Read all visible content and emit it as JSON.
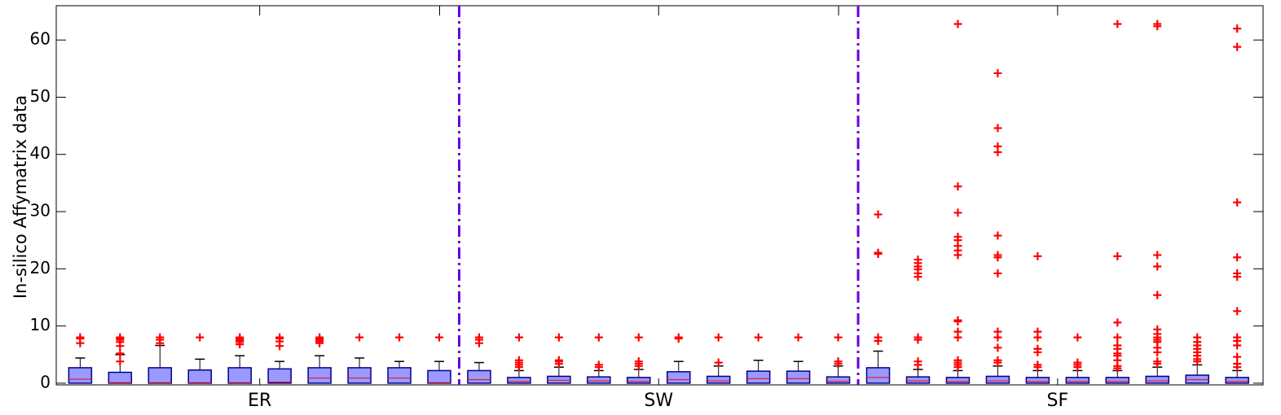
{
  "chart_data": {
    "type": "box",
    "ylabel": "In-silico  Affymatrix data",
    "ylim": [
      -0.3,
      66
    ],
    "yticks": [
      0,
      10,
      20,
      30,
      40,
      50,
      60
    ],
    "grid": false,
    "groups": [
      "ER",
      "SW",
      "SF"
    ],
    "boxes_per_group": 10,
    "colors": {
      "box_fill": "#9999ff",
      "box_edge": "#00008b",
      "median": "#ff0000",
      "outlier": "#ff0000",
      "separator": "#6600dd",
      "whisker": "#000000"
    },
    "boxes": [
      {
        "group": "ER",
        "q1": 0,
        "median": 0.7,
        "q3": 2.7,
        "whisker_low": 0,
        "whisker_high": 4.4,
        "outliers": [
          7.0,
          7.8,
          8.0
        ]
      },
      {
        "group": "ER",
        "q1": 0,
        "median": 0.1,
        "q3": 1.9,
        "whisker_low": 0,
        "whisker_high": 5.0,
        "outliers": [
          3.8,
          5.2,
          6.5,
          7.2,
          7.6,
          7.9,
          8.0
        ]
      },
      {
        "group": "ER",
        "q1": 0,
        "median": 0.1,
        "q3": 2.7,
        "whisker_low": 0,
        "whisker_high": 6.6,
        "outliers": [
          7.0,
          7.6,
          8.0
        ]
      },
      {
        "group": "ER",
        "q1": 0,
        "median": 0.1,
        "q3": 2.3,
        "whisker_low": 0,
        "whisker_high": 4.2,
        "outliers": [
          8.0
        ]
      },
      {
        "group": "ER",
        "q1": 0,
        "median": 0.1,
        "q3": 2.7,
        "whisker_low": 0,
        "whisker_high": 4.8,
        "outliers": [
          6.8,
          7.2,
          7.4,
          7.6,
          7.9,
          8.0
        ]
      },
      {
        "group": "ER",
        "q1": 0,
        "median": 0.2,
        "q3": 2.5,
        "whisker_low": 0,
        "whisker_high": 3.8,
        "outliers": [
          6.5,
          7.3,
          7.8,
          8.0
        ]
      },
      {
        "group": "ER",
        "q1": 0,
        "median": 0.9,
        "q3": 2.7,
        "whisker_low": 0,
        "whisker_high": 4.8,
        "outliers": [
          7.0,
          7.3,
          7.6,
          7.8,
          8.0
        ]
      },
      {
        "group": "ER",
        "q1": 0,
        "median": 0.9,
        "q3": 2.7,
        "whisker_low": 0,
        "whisker_high": 4.4,
        "outliers": [
          8.0
        ]
      },
      {
        "group": "ER",
        "q1": 0,
        "median": 0.9,
        "q3": 2.7,
        "whisker_low": 0,
        "whisker_high": 3.8,
        "outliers": [
          8.0
        ]
      },
      {
        "group": "ER",
        "q1": 0,
        "median": 0.1,
        "q3": 2.2,
        "whisker_low": 0,
        "whisker_high": 3.8,
        "outliers": [
          8.0
        ]
      },
      {
        "group": "SW",
        "q1": 0,
        "median": 0.6,
        "q3": 2.2,
        "whisker_low": 0,
        "whisker_high": 3.6,
        "outliers": [
          7.0,
          7.6,
          8.0
        ]
      },
      {
        "group": "SW",
        "q1": 0,
        "median": 0.3,
        "q3": 1.0,
        "whisker_low": 0,
        "whisker_high": 2.2,
        "outliers": [
          2.8,
          3.2,
          3.6,
          4.0,
          8.0
        ]
      },
      {
        "group": "SW",
        "q1": 0,
        "median": 0.5,
        "q3": 1.2,
        "whisker_low": 0,
        "whisker_high": 2.8,
        "outliers": [
          3.4,
          3.8,
          4.0,
          8.0
        ]
      },
      {
        "group": "SW",
        "q1": 0,
        "median": 0.4,
        "q3": 1.1,
        "whisker_low": 0,
        "whisker_high": 2.2,
        "outliers": [
          2.8,
          3.2,
          8.0
        ]
      },
      {
        "group": "SW",
        "q1": 0,
        "median": 0.3,
        "q3": 1.0,
        "whisker_low": 0,
        "whisker_high": 2.4,
        "outliers": [
          3.0,
          3.4,
          3.8,
          8.0
        ]
      },
      {
        "group": "SW",
        "q1": 0,
        "median": 0.6,
        "q3": 2.0,
        "whisker_low": 0,
        "whisker_high": 3.8,
        "outliers": [
          7.8,
          8.0
        ]
      },
      {
        "group": "SW",
        "q1": 0,
        "median": 0.4,
        "q3": 1.2,
        "whisker_low": 0,
        "whisker_high": 3.0,
        "outliers": [
          3.6,
          8.0
        ]
      },
      {
        "group": "SW",
        "q1": 0,
        "median": 0.8,
        "q3": 2.1,
        "whisker_low": 0,
        "whisker_high": 4.0,
        "outliers": [
          8.0
        ]
      },
      {
        "group": "SW",
        "q1": 0,
        "median": 0.8,
        "q3": 2.1,
        "whisker_low": 0,
        "whisker_high": 3.8,
        "outliers": [
          8.0
        ]
      },
      {
        "group": "SW",
        "q1": 0,
        "median": 0.3,
        "q3": 1.1,
        "whisker_low": 0,
        "whisker_high": 3.0,
        "outliers": [
          3.4,
          3.8,
          8.0
        ]
      },
      {
        "group": "SF",
        "q1": 0,
        "median": 1.0,
        "q3": 2.7,
        "whisker_low": 0,
        "whisker_high": 5.6,
        "outliers": [
          7.4,
          8.0,
          22.6,
          22.8,
          29.5
        ]
      },
      {
        "group": "SF",
        "q1": 0,
        "median": 0.4,
        "q3": 1.1,
        "whisker_low": 0,
        "whisker_high": 2.4,
        "outliers": [
          3.2,
          3.8,
          7.6,
          8.0,
          18.6,
          19.2,
          19.9,
          20.4,
          21.0,
          21.6
        ]
      },
      {
        "group": "SF",
        "q1": 0,
        "median": 0.3,
        "q3": 1.0,
        "whisker_low": 0,
        "whisker_high": 2.2,
        "outliers": [
          2.8,
          3.2,
          3.6,
          4.0,
          8.0,
          9.0,
          10.8,
          11.0,
          22.4,
          23.2,
          24.0,
          25.0,
          25.6,
          29.8,
          34.4,
          62.8
        ]
      },
      {
        "group": "SF",
        "q1": 0,
        "median": 0.4,
        "q3": 1.2,
        "whisker_low": 0,
        "whisker_high": 3.0,
        "outliers": [
          3.6,
          4.0,
          6.2,
          8.0,
          9.0,
          19.2,
          22.0,
          22.4,
          25.8,
          40.4,
          41.4,
          44.6,
          54.2
        ]
      },
      {
        "group": "SF",
        "q1": 0,
        "median": 0.3,
        "q3": 1.0,
        "whisker_low": 0,
        "whisker_high": 2.2,
        "outliers": [
          2.8,
          3.2,
          5.4,
          6.0,
          8.0,
          9.0,
          22.2
        ]
      },
      {
        "group": "SF",
        "q1": 0,
        "median": 0.3,
        "q3": 1.0,
        "whisker_low": 0,
        "whisker_high": 2.2,
        "outliers": [
          2.8,
          3.2,
          3.6,
          8.0
        ]
      },
      {
        "group": "SF",
        "q1": 0,
        "median": 0.3,
        "q3": 1.0,
        "whisker_low": 0,
        "whisker_high": 2.2,
        "outliers": [
          2.6,
          3.0,
          4.0,
          4.8,
          5.2,
          6.0,
          6.6,
          8.0,
          10.6,
          22.2,
          62.8
        ]
      },
      {
        "group": "SF",
        "q1": 0,
        "median": 0.4,
        "q3": 1.2,
        "whisker_low": 0,
        "whisker_high": 2.8,
        "outliers": [
          3.4,
          3.8,
          5.4,
          6.2,
          7.2,
          7.6,
          8.0,
          8.6,
          9.4,
          15.4,
          20.4,
          22.4,
          62.4,
          62.8
        ]
      },
      {
        "group": "SF",
        "q1": 0,
        "median": 0.6,
        "q3": 1.4,
        "whisker_low": 0,
        "whisker_high": 3.2,
        "outliers": [
          3.8,
          4.2,
          4.8,
          5.4,
          6.0,
          6.6,
          7.2,
          8.0
        ]
      },
      {
        "group": "SF",
        "q1": 0,
        "median": 0.3,
        "q3": 1.0,
        "whisker_low": 0,
        "whisker_high": 2.2,
        "outliers": [
          2.8,
          3.4,
          4.6,
          6.6,
          7.4,
          8.0,
          12.6,
          18.6,
          19.2,
          22.0,
          31.6,
          58.8,
          62.0
        ]
      }
    ]
  }
}
